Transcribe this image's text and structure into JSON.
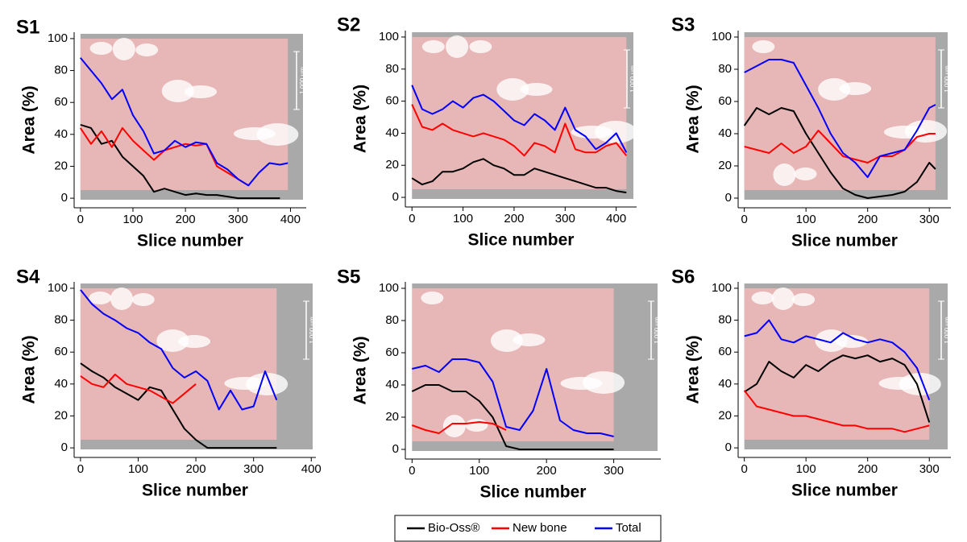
{
  "chart_data": [
    {
      "type": "line",
      "title": "S1",
      "xlabel": "Slice number",
      "ylabel": "Area (%)",
      "scale_label": "1,000 µm",
      "xlim": [
        -12,
        430
      ],
      "xticks": [
        0,
        100,
        200,
        300,
        400
      ],
      "ylim": [
        -6,
        104
      ],
      "yticks": [
        0,
        20,
        40,
        60,
        80,
        100
      ],
      "x": [
        0,
        20,
        40,
        60,
        80,
        100,
        120,
        140,
        160,
        180,
        200,
        220,
        240,
        260,
        280,
        300,
        320,
        340,
        360,
        380,
        395
      ],
      "series": [
        {
          "name": "Bio-Oss®",
          "color": "#000000",
          "values": [
            46,
            44,
            34,
            36,
            26,
            20,
            14,
            4,
            6,
            4,
            2,
            3,
            2,
            2,
            1,
            0,
            0,
            0,
            0,
            0,
            null
          ]
        },
        {
          "name": "New bone",
          "color": "#ff0000",
          "values": [
            44,
            34,
            42,
            32,
            44,
            36,
            30,
            24,
            30,
            32,
            34,
            33,
            34,
            20,
            16,
            12,
            8,
            null,
            null,
            null,
            null
          ]
        },
        {
          "name": "Total",
          "color": "#0000ff",
          "values": [
            88,
            80,
            72,
            62,
            68,
            52,
            42,
            28,
            30,
            36,
            32,
            35,
            34,
            22,
            18,
            12,
            8,
            16,
            22,
            21,
            22
          ]
        }
      ]
    },
    {
      "type": "line",
      "title": "S2",
      "xlabel": "Slice number",
      "ylabel": "Area (%)",
      "scale_label": "1,000 µm",
      "xlim": [
        -13,
        440
      ],
      "xticks": [
        0,
        100,
        200,
        300,
        400
      ],
      "ylim": [
        -6,
        104
      ],
      "yticks": [
        0,
        20,
        40,
        60,
        80,
        100
      ],
      "x": [
        0,
        20,
        40,
        60,
        80,
        100,
        120,
        140,
        160,
        180,
        200,
        220,
        240,
        260,
        280,
        300,
        320,
        340,
        360,
        380,
        400,
        420
      ],
      "series": [
        {
          "name": "Bio-Oss®",
          "color": "#000000",
          "values": [
            12,
            8,
            10,
            16,
            16,
            18,
            22,
            24,
            20,
            18,
            14,
            14,
            18,
            16,
            14,
            12,
            10,
            8,
            6,
            6,
            4,
            3
          ]
        },
        {
          "name": "New bone",
          "color": "#ff0000",
          "values": [
            58,
            44,
            42,
            46,
            42,
            40,
            38,
            40,
            38,
            36,
            32,
            26,
            34,
            32,
            28,
            46,
            30,
            28,
            28,
            32,
            34,
            26
          ]
        },
        {
          "name": "Total",
          "color": "#0000ff",
          "values": [
            70,
            55,
            52,
            55,
            60,
            56,
            62,
            64,
            60,
            54,
            48,
            45,
            52,
            48,
            42,
            56,
            42,
            38,
            30,
            34,
            40,
            28
          ]
        }
      ]
    },
    {
      "type": "line",
      "title": "S3",
      "xlabel": "Slice number",
      "ylabel": "Area (%)",
      "scale_label": "1,000 µm",
      "xlim": [
        -10,
        335
      ],
      "xticks": [
        0,
        100,
        200,
        300
      ],
      "ylim": [
        -6,
        104
      ],
      "yticks": [
        0,
        20,
        40,
        60,
        80,
        100
      ],
      "x": [
        0,
        20,
        40,
        60,
        80,
        100,
        120,
        140,
        160,
        180,
        200,
        220,
        240,
        260,
        280,
        300,
        310
      ],
      "series": [
        {
          "name": "Bio-Oss®",
          "color": "#000000",
          "values": [
            45,
            56,
            52,
            56,
            54,
            40,
            28,
            16,
            6,
            2,
            0,
            1,
            2,
            4,
            10,
            22,
            18
          ]
        },
        {
          "name": "New bone",
          "color": "#ff0000",
          "values": [
            32,
            30,
            28,
            34,
            28,
            32,
            42,
            34,
            26,
            24,
            22,
            26,
            26,
            30,
            38,
            40,
            40
          ]
        },
        {
          "name": "Total",
          "color": "#0000ff",
          "values": [
            78,
            82,
            86,
            86,
            84,
            70,
            56,
            40,
            28,
            22,
            13,
            26,
            28,
            30,
            42,
            56,
            58
          ]
        }
      ]
    },
    {
      "type": "line",
      "title": "S4",
      "xlabel": "Slice number",
      "ylabel": "Area (%)",
      "scale_label": "1,000 µm",
      "xlim": [
        -11,
        408
      ],
      "xticks": [
        0,
        100,
        200,
        300,
        400
      ],
      "ylim": [
        -6,
        104
      ],
      "yticks": [
        0,
        20,
        40,
        60,
        80,
        100
      ],
      "x": [
        0,
        20,
        40,
        60,
        80,
        100,
        120,
        140,
        160,
        180,
        200,
        220,
        240,
        260,
        280,
        300,
        320,
        340
      ],
      "series": [
        {
          "name": "Bio-Oss®",
          "color": "#000000",
          "values": [
            53,
            48,
            44,
            38,
            34,
            30,
            38,
            36,
            24,
            12,
            5,
            0,
            0,
            0,
            0,
            0,
            0,
            0
          ]
        },
        {
          "name": "New bone",
          "color": "#ff0000",
          "values": [
            45,
            40,
            38,
            46,
            40,
            38,
            36,
            32,
            28,
            34,
            40,
            null,
            null,
            null,
            null,
            null,
            null,
            null
          ]
        },
        {
          "name": "Total",
          "color": "#0000ff",
          "values": [
            99,
            90,
            84,
            80,
            75,
            72,
            66,
            62,
            50,
            44,
            48,
            42,
            24,
            36,
            24,
            26,
            48,
            30
          ]
        }
      ]
    },
    {
      "type": "line",
      "title": "S5",
      "xlabel": "Slice number",
      "ylabel": "Area (%)",
      "scale_label": "1,000 µm",
      "xlim": [
        -10,
        370
      ],
      "xticks": [
        0,
        100,
        200,
        300
      ],
      "ylim": [
        -6,
        104
      ],
      "yticks": [
        0,
        20,
        40,
        60,
        80,
        100
      ],
      "x": [
        0,
        20,
        40,
        60,
        80,
        100,
        120,
        140,
        160,
        180,
        200,
        220,
        240,
        260,
        280,
        300
      ],
      "series": [
        {
          "name": "Bio-Oss®",
          "color": "#000000",
          "values": [
            36,
            40,
            40,
            36,
            36,
            30,
            20,
            2,
            0,
            0,
            0,
            0,
            0,
            0,
            0,
            0
          ]
        },
        {
          "name": "New bone",
          "color": "#ff0000",
          "values": [
            15,
            12,
            10,
            16,
            16,
            17,
            16,
            12,
            null,
            null,
            null,
            null,
            null,
            null,
            null,
            null
          ]
        },
        {
          "name": "Total",
          "color": "#0000ff",
          "values": [
            50,
            52,
            48,
            56,
            56,
            54,
            42,
            14,
            12,
            24,
            50,
            18,
            12,
            10,
            10,
            8
          ]
        }
      ]
    },
    {
      "type": "line",
      "title": "S6",
      "xlabel": "Slice number",
      "ylabel": "Area (%)",
      "scale_label": "1,000 µm",
      "xlim": [
        -10,
        335
      ],
      "xticks": [
        0,
        100,
        200,
        300
      ],
      "ylim": [
        -6,
        104
      ],
      "yticks": [
        0,
        20,
        40,
        60,
        80,
        100
      ],
      "x": [
        0,
        20,
        40,
        60,
        80,
        100,
        120,
        140,
        160,
        180,
        200,
        220,
        240,
        260,
        280,
        300
      ],
      "series": [
        {
          "name": "Bio-Oss®",
          "color": "#000000",
          "values": [
            35,
            40,
            54,
            48,
            44,
            52,
            48,
            54,
            58,
            56,
            58,
            54,
            56,
            52,
            40,
            16
          ]
        },
        {
          "name": "New bone",
          "color": "#ff0000",
          "values": [
            36,
            26,
            24,
            22,
            20,
            20,
            18,
            16,
            14,
            14,
            12,
            12,
            12,
            10,
            12,
            14
          ]
        },
        {
          "name": "Total",
          "color": "#0000ff",
          "values": [
            70,
            72,
            80,
            68,
            66,
            70,
            68,
            66,
            72,
            68,
            66,
            68,
            66,
            60,
            50,
            30
          ]
        }
      ]
    }
  ]
}
